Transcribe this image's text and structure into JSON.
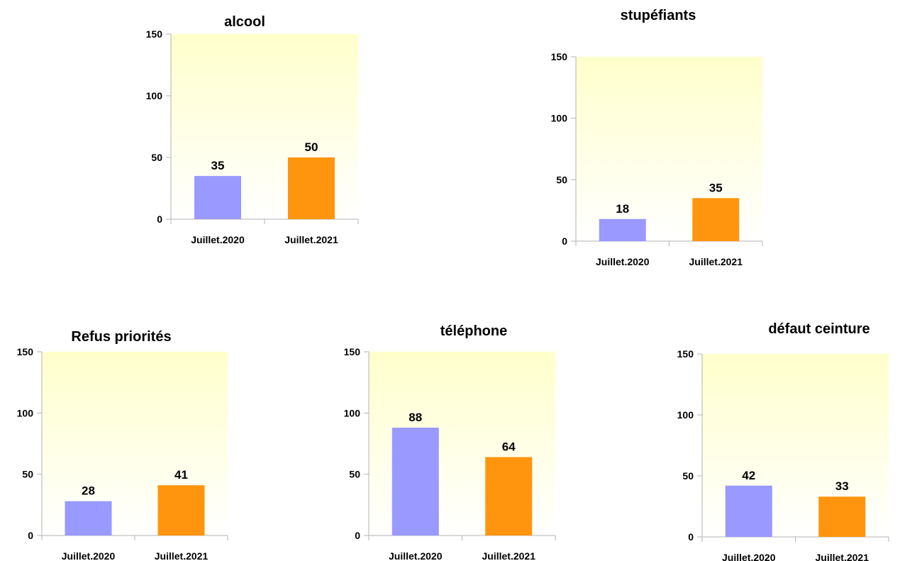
{
  "colors": {
    "series_2020": "#9999ff",
    "series_2021": "#ff950e",
    "plot_bg_top": "#ffffcc",
    "plot_bg_bottom": "#ffffff",
    "axis": "#b3b3b3",
    "text": "#000000"
  },
  "chart_data": [
    {
      "type": "bar",
      "title": "alcool",
      "categories": [
        "Juillet.2020",
        "Juillet.2021"
      ],
      "values": [
        35,
        50
      ],
      "ylim": [
        0,
        150
      ],
      "yticks": [
        0,
        50,
        100,
        150
      ],
      "grid": false,
      "legend": "none",
      "data_labels": true
    },
    {
      "type": "bar",
      "title": "stupéfiants",
      "categories": [
        "Juillet.2020",
        "Juillet.2021"
      ],
      "values": [
        18,
        35
      ],
      "ylim": [
        0,
        150
      ],
      "yticks": [
        0,
        50,
        100,
        150
      ],
      "grid": false,
      "legend": "none",
      "data_labels": true
    },
    {
      "type": "bar",
      "title": "Refus priorités",
      "categories": [
        "Juillet.2020",
        "Juillet.2021"
      ],
      "values": [
        28,
        41
      ],
      "ylim": [
        0,
        150
      ],
      "yticks": [
        0,
        50,
        100,
        150
      ],
      "grid": false,
      "legend": "none",
      "data_labels": true
    },
    {
      "type": "bar",
      "title": "téléphone",
      "categories": [
        "Juillet.2020",
        "Juillet.2021"
      ],
      "values": [
        88,
        64
      ],
      "ylim": [
        0,
        150
      ],
      "yticks": [
        0,
        50,
        100,
        150
      ],
      "grid": false,
      "legend": "none",
      "data_labels": true
    },
    {
      "type": "bar",
      "title": "défaut ceinture",
      "categories": [
        "Juillet.2020",
        "Juillet.2021"
      ],
      "values": [
        42,
        33
      ],
      "ylim": [
        0,
        150
      ],
      "yticks": [
        0,
        50,
        100,
        150
      ],
      "grid": false,
      "legend": "none",
      "data_labels": true
    }
  ]
}
